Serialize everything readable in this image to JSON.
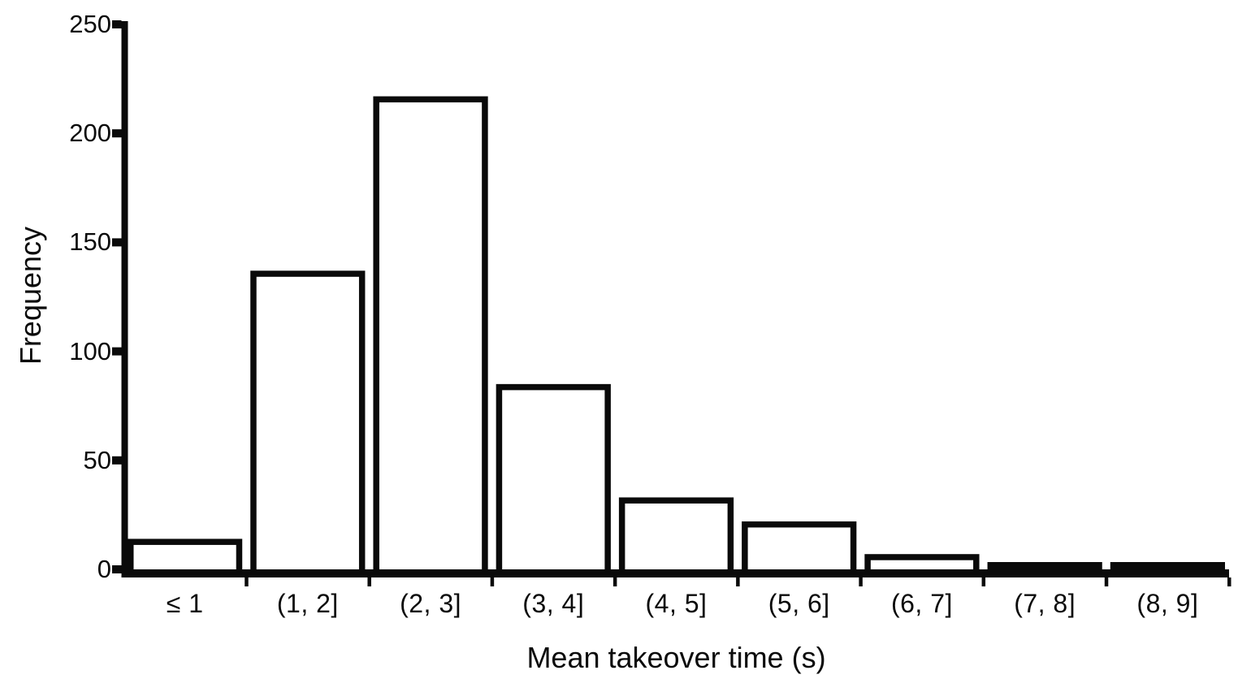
{
  "chart_data": {
    "type": "bar",
    "subtype": "histogram",
    "title": "",
    "categories": [
      "≤ 1",
      "(1, 2]",
      "(2, 3]",
      "(3, 4]",
      "(4, 5]",
      "(5, 6]",
      "(6, 7]",
      "(7, 8]",
      "(8, 9]"
    ],
    "values": [
      14,
      137,
      217,
      85,
      33,
      22,
      7,
      2,
      2
    ],
    "xlabel": "Mean takeover time (s)",
    "ylabel": "Frequency",
    "ylim": [
      0,
      250
    ],
    "y_ticks": [
      0,
      50,
      100,
      150,
      200,
      250
    ],
    "grid": false,
    "legend": "none",
    "bar_fill": "#ffffff",
    "bar_stroke": "#0a0a0a",
    "axis_color": "#0a0a0a",
    "background": "#ffffff"
  }
}
